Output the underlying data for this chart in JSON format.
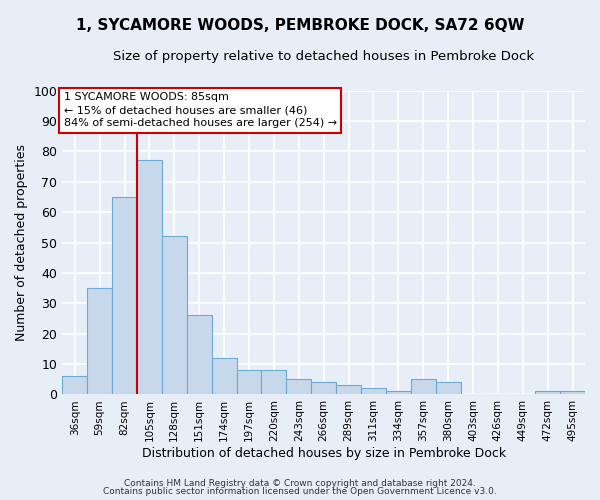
{
  "title": "1, SYCAMORE WOODS, PEMBROKE DOCK, SA72 6QW",
  "subtitle": "Size of property relative to detached houses in Pembroke Dock",
  "xlabel": "Distribution of detached houses by size in Pembroke Dock",
  "ylabel": "Number of detached properties",
  "bar_labels": [
    "36sqm",
    "59sqm",
    "82sqm",
    "105sqm",
    "128sqm",
    "151sqm",
    "174sqm",
    "197sqm",
    "220sqm",
    "243sqm",
    "266sqm",
    "289sqm",
    "311sqm",
    "334sqm",
    "357sqm",
    "380sqm",
    "403sqm",
    "426sqm",
    "449sqm",
    "472sqm",
    "495sqm"
  ],
  "bar_values": [
    6,
    35,
    65,
    77,
    52,
    26,
    12,
    8,
    8,
    5,
    4,
    3,
    2,
    1,
    5,
    4,
    0,
    0,
    0,
    1,
    1
  ],
  "bar_color": "#c8d8eb",
  "bar_edge_color": "#6aaad4",
  "vline_x": 2.5,
  "vline_color": "#cc0000",
  "annotation_text": "1 SYCAMORE WOODS: 85sqm\n← 15% of detached houses are smaller (46)\n84% of semi-detached houses are larger (254) →",
  "annotation_box_color": "#ffffff",
  "annotation_box_edge": "#cc0000",
  "ylim": [
    0,
    100
  ],
  "footer1": "Contains HM Land Registry data © Crown copyright and database right 2024.",
  "footer2": "Contains public sector information licensed under the Open Government Licence v3.0.",
  "background_color": "#e8eef8",
  "grid_color": "#ffffff",
  "title_fontsize": 11,
  "subtitle_fontsize": 9.5
}
